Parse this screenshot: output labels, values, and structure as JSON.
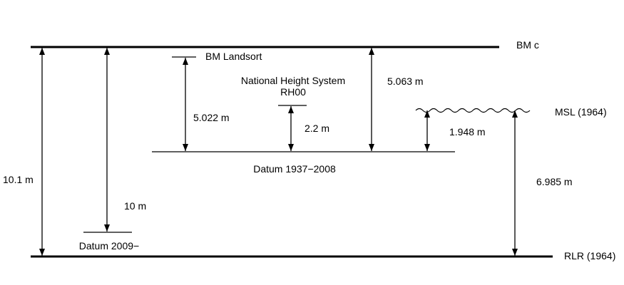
{
  "levels": {
    "bm_c": "BM c",
    "bm_landsort": "BM Landsort",
    "national_height_system_line1": "National Height System",
    "national_height_system_line2": "RH00",
    "msl": "MSL (1964)",
    "datum_1937_2008": "Datum 1937−2008",
    "datum_2009": "Datum 2009−",
    "rlr": "RLR (1964)"
  },
  "distances": {
    "bmc_to_rlr": "10.1 m",
    "bmc_to_datum2009": "10 m",
    "bm_landsort_to_datum1937": "5.022 m",
    "rh00_to_datum1937": "2.2 m",
    "bmc_to_datum1937": "5.063 m",
    "msl_to_datum1937": "1.948 m",
    "msl_to_rlr": "6.985 m"
  }
}
